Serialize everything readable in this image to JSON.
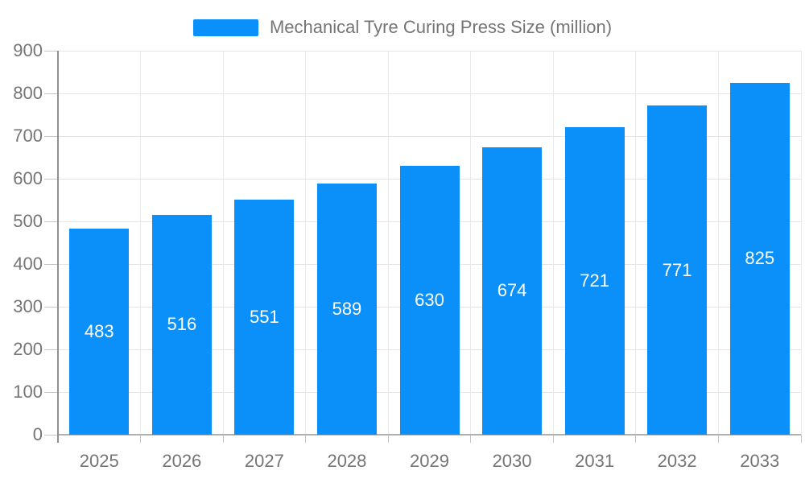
{
  "chart_data": {
    "type": "bar",
    "title": "Mechanical Tyre Curing Press Size (million)",
    "categories": [
      "2025",
      "2026",
      "2027",
      "2028",
      "2029",
      "2030",
      "2031",
      "2032",
      "2033"
    ],
    "values": [
      483,
      516,
      551,
      589,
      630,
      674,
      721,
      771,
      825
    ],
    "xlabel": "",
    "ylabel": "",
    "ylim": [
      0,
      900
    ],
    "ytick_step": 100,
    "grid": "horizontal and vertical gridlines on",
    "legend_position": "top-center",
    "value_labels": "white, centered inside bars",
    "colors": {
      "bar": "#0b90f9",
      "bar_value_text": "#ffffff",
      "axis_text": "#757575",
      "legend_text": "#757575",
      "h_gridline": "#e4e4e4",
      "v_gridline": "#e9e9e9",
      "y_axis_line": "#8f8f8f",
      "x_axis_line": "#b0b0b0",
      "tick": "#c4c4c4",
      "background": "#ffffff"
    }
  }
}
